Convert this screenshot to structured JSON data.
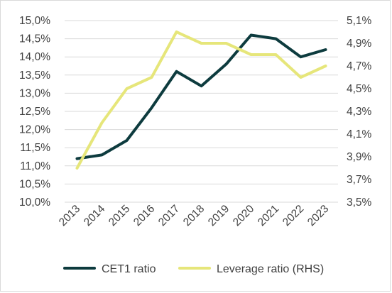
{
  "chart_data": {
    "type": "line",
    "title": "",
    "x": [
      "2013",
      "2014",
      "2015",
      "2016",
      "2017",
      "2018",
      "2019",
      "2020",
      "2021",
      "2022",
      "2023"
    ],
    "y_left": {
      "ticks": [
        "10,0%",
        "10,5%",
        "11,0%",
        "11,5%",
        "12,0%",
        "12,5%",
        "13,0%",
        "13,5%",
        "14,0%",
        "14,5%",
        "15,0%"
      ],
      "lim": [
        10.0,
        15.0
      ]
    },
    "y_right": {
      "ticks": [
        "3,5%",
        "3,7%",
        "3,9%",
        "4,1%",
        "4,3%",
        "4,5%",
        "4,7%",
        "4,9%",
        "5,1%"
      ],
      "lim": [
        3.5,
        5.1
      ]
    },
    "series": [
      {
        "name": "CET1 ratio",
        "axis": "left",
        "color": "#0d3b3e",
        "values": [
          11.2,
          11.3,
          11.7,
          12.6,
          13.6,
          13.2,
          13.8,
          14.6,
          14.5,
          14.0,
          14.2
        ]
      },
      {
        "name": "Leverage ratio (RHS)",
        "axis": "right",
        "color": "#e6e67a",
        "values": [
          3.8,
          4.2,
          4.5,
          4.6,
          5.0,
          4.9,
          4.9,
          4.8,
          4.8,
          4.6,
          4.7
        ]
      }
    ],
    "grid": "horizontal",
    "legend_position": "bottom"
  }
}
